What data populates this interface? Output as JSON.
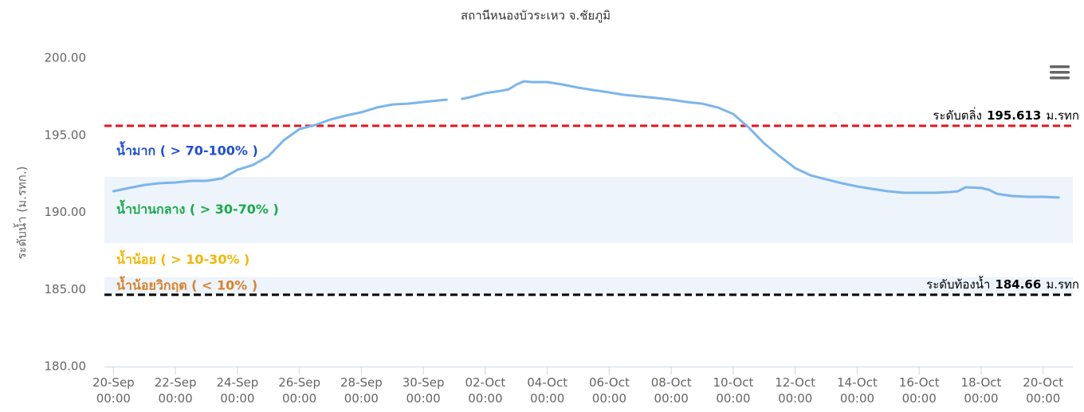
{
  "chart_data": {
    "type": "line",
    "title": "สถานีหนองบัวระเหว จ.ชัยภูมิ",
    "y_label": "ระดับน้ำ (ม.รทก.)",
    "color": "#7cb5ec",
    "x": [
      "20-Sep 00:00",
      "20-Sep 12:00",
      "21-Sep 00:00",
      "21-Sep 12:00",
      "22-Sep 00:00",
      "22-Sep 12:00",
      "23-Sep 00:00",
      "23-Sep 12:00",
      "24-Sep 00:00",
      "24-Sep 12:00",
      "25-Sep 00:00",
      "25-Sep 12:00",
      "26-Sep 00:00",
      "26-Sep 12:00",
      "27-Sep 00:00",
      "27-Sep 12:00",
      "28-Sep 00:00",
      "28-Sep 12:00",
      "29-Sep 00:00",
      "29-Sep 12:00",
      "30-Sep 00:00",
      "30-Sep 12:00",
      "30-Sep 18:00",
      "01-Oct 00:00",
      "01-Oct 06:00",
      "01-Oct 12:00",
      "02-Oct 00:00",
      "02-Oct 12:00",
      "02-Oct 18:00",
      "03-Oct 00:00",
      "03-Oct 06:00",
      "03-Oct 12:00",
      "04-Oct 00:00",
      "04-Oct 12:00",
      "05-Oct 00:00",
      "05-Oct 12:00",
      "06-Oct 00:00",
      "06-Oct 12:00",
      "07-Oct 00:00",
      "07-Oct 12:00",
      "08-Oct 00:00",
      "08-Oct 12:00",
      "09-Oct 00:00",
      "09-Oct 12:00",
      "10-Oct 00:00",
      "10-Oct 12:00",
      "11-Oct 00:00",
      "11-Oct 12:00",
      "12-Oct 00:00",
      "12-Oct 12:00",
      "13-Oct 00:00",
      "13-Oct 12:00",
      "14-Oct 00:00",
      "14-Oct 12:00",
      "15-Oct 00:00",
      "15-Oct 12:00",
      "16-Oct 00:00",
      "16-Oct 12:00",
      "17-Oct 00:00",
      "17-Oct 06:00",
      "17-Oct 12:00",
      "18-Oct 00:00",
      "18-Oct 06:00",
      "18-Oct 12:00",
      "19-Oct 00:00",
      "19-Oct 12:00",
      "20-Oct 00:00",
      "20-Oct 12:00"
    ],
    "values": [
      191.37,
      191.58,
      191.78,
      191.89,
      191.94,
      192.04,
      192.04,
      192.2,
      192.76,
      193.07,
      193.64,
      194.68,
      195.4,
      195.66,
      196.02,
      196.28,
      196.49,
      196.8,
      197.0,
      197.05,
      197.16,
      197.26,
      197.31,
      null,
      197.36,
      197.47,
      197.73,
      197.88,
      197.98,
      198.29,
      198.5,
      198.45,
      198.45,
      198.29,
      198.09,
      197.93,
      197.78,
      197.62,
      197.52,
      197.42,
      197.31,
      197.16,
      197.05,
      196.8,
      196.38,
      195.5,
      194.47,
      193.64,
      192.87,
      192.4,
      192.14,
      191.89,
      191.68,
      191.52,
      191.37,
      191.27,
      191.27,
      191.27,
      191.32,
      191.37,
      191.63,
      191.58,
      191.47,
      191.21,
      191.06,
      191.01,
      191.01,
      190.96
    ],
    "xlim": [
      "19-Sep 17:00",
      "20-Oct 23:00"
    ],
    "xticks": [
      "20-Sep 00:00",
      "22-Sep 00:00",
      "24-Sep 00:00",
      "26-Sep 00:00",
      "28-Sep 00:00",
      "30-Sep 00:00",
      "02-Oct 00:00",
      "04-Oct 00:00",
      "06-Oct 00:00",
      "08-Oct 00:00",
      "10-Oct 00:00",
      "12-Oct 00:00",
      "14-Oct 00:00",
      "16-Oct 00:00",
      "18-Oct 00:00",
      "20-Oct 00:00"
    ],
    "ylim": [
      180,
      200
    ],
    "yticks": [
      {
        "value": 180,
        "label": "180.00"
      },
      {
        "value": 185,
        "label": "185.00"
      },
      {
        "value": 190,
        "label": "190.00"
      },
      {
        "value": 195,
        "label": "195.00"
      },
      {
        "value": 200,
        "label": "200.00"
      }
    ],
    "grid": false,
    "zones": [
      {
        "label": "น้ำมาก ( > 70-100% )",
        "color": "#1f4fd8",
        "from": 192.3,
        "to": 195.6
      },
      {
        "label": "น้ำปานกลาง ( > 30-70% )",
        "color": "#1aaa4a",
        "from": 188.0,
        "to": 192.3
      },
      {
        "label": "น้ำน้อย ( > 10-30% )",
        "color": "#f2b705",
        "from": 185.8,
        "to": 188.0
      },
      {
        "label": "น้ำน้อยวิกฤต ( < 10% )",
        "color": "#d9822b",
        "from": 184.66,
        "to": 185.8
      }
    ],
    "reference_lines": [
      {
        "label": "ระดับตลิ่ง",
        "value": 195.613,
        "unit": "ม.รทก",
        "color": "#e8141b"
      },
      {
        "label": "ระดับท้องน้ำ",
        "value": 184.66,
        "unit": "ม.รทก",
        "color": "#000000"
      }
    ]
  }
}
